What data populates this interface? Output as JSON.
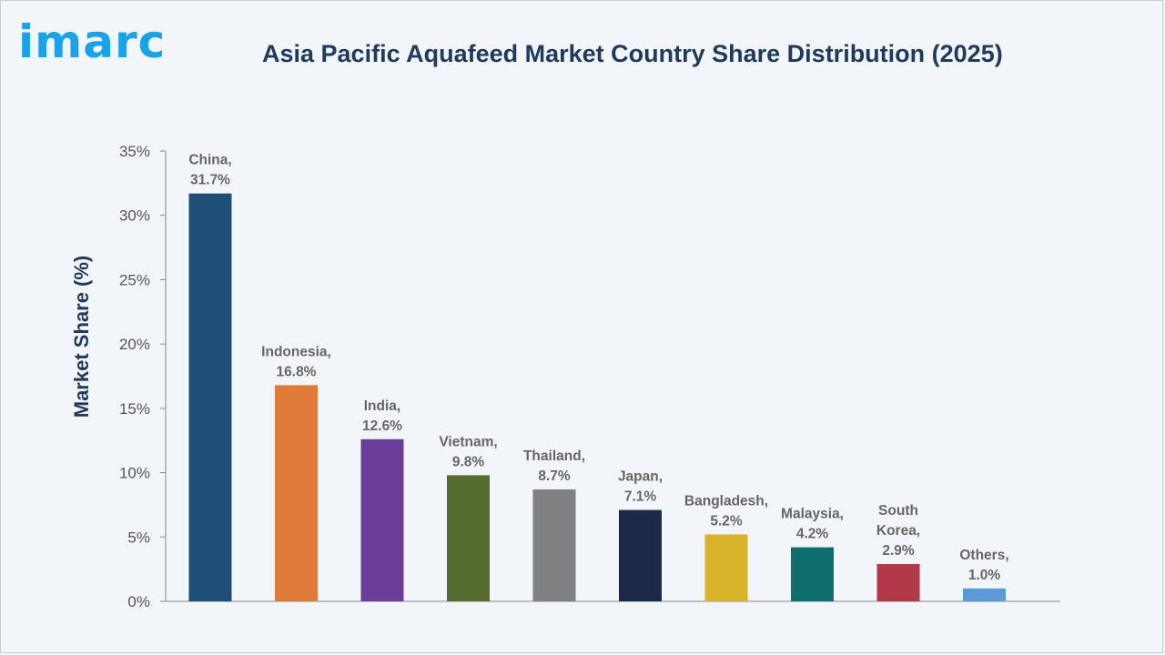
{
  "brand": {
    "logo_text": "imarc",
    "color": "#1aa3e8"
  },
  "chart_data": {
    "type": "bar",
    "title": "Asia Pacific Aquafeed Market Country Share Distribution (2025)",
    "xlabel": "",
    "ylabel": "Market Share (%)",
    "ylim": [
      0,
      35
    ],
    "yticks": [
      0,
      5,
      10,
      15,
      20,
      25,
      30,
      35
    ],
    "ytick_labels": [
      "0%",
      "5%",
      "10%",
      "15%",
      "20%",
      "25%",
      "30%",
      "35%"
    ],
    "grid": false,
    "legend": "none",
    "categories": [
      "China",
      "Indonesia",
      "India",
      "Vietnam",
      "Thailand",
      "Japan",
      "Bangladesh",
      "Malaysia",
      "South Korea",
      "Others"
    ],
    "values": [
      31.7,
      16.8,
      12.6,
      9.8,
      8.7,
      7.1,
      5.2,
      4.2,
      2.9,
      1.0
    ],
    "data_labels": [
      [
        "China,",
        "31.7%"
      ],
      [
        "Indonesia,",
        "16.8%"
      ],
      [
        "India,",
        "12.6%"
      ],
      [
        "Vietnam,",
        "9.8%"
      ],
      [
        "Thailand,",
        "8.7%"
      ],
      [
        "Japan,",
        "7.1%"
      ],
      [
        "Bangladesh,",
        "5.2%"
      ],
      [
        "Malaysia,",
        "4.2%"
      ],
      [
        "South",
        "Korea,",
        "2.9%"
      ],
      [
        "Others,",
        "1.0%"
      ]
    ],
    "colors": [
      "#1f4e79",
      "#e07b39",
      "#6a3d9a",
      "#556b2f",
      "#808080",
      "#1b2a47",
      "#d9b42b",
      "#0f6e6e",
      "#b23a48",
      "#5b9bd5"
    ]
  }
}
